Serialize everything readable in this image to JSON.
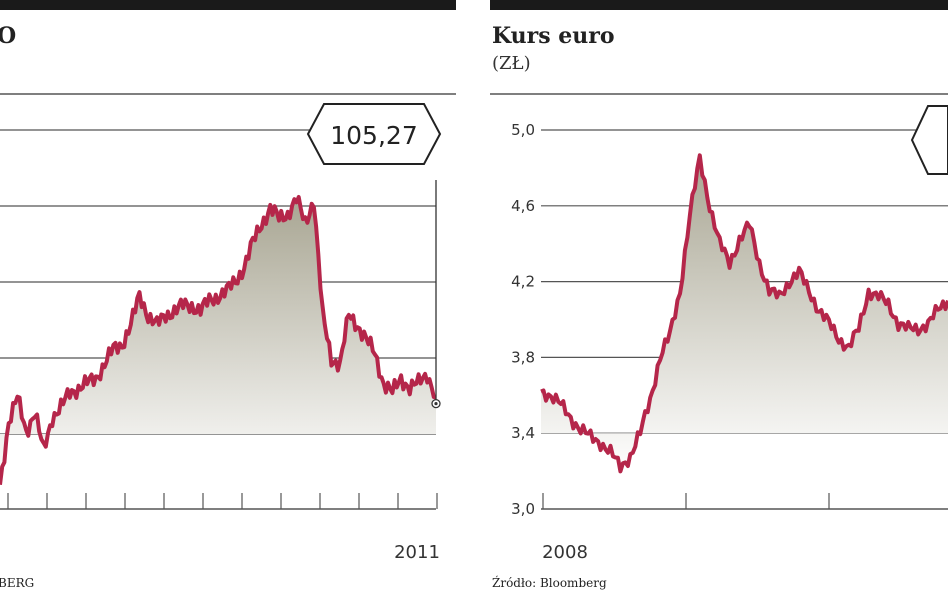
{
  "left_panel": {
    "title_visible": "O",
    "year_label": "2011",
    "source_visible": "BERG",
    "callout_value": "105,27",
    "colors": {
      "line": "#b5264a",
      "area_top": "#a8a592",
      "grid": "#555555"
    }
  },
  "right_panel": {
    "title": "Kurs euro",
    "unit": "(ZŁ)",
    "year_label": "2008",
    "source": "Źródło: Bloomberg",
    "colors": {
      "line": "#b5264a",
      "area_top": "#a8a592",
      "grid": "#555555"
    }
  },
  "chart_data": [
    {
      "type": "area",
      "title": "",
      "y_scale_labels_visible": false,
      "end_value": 105.27,
      "series": [
        {
          "values": [
            1.5,
            2.8,
            3.3,
            2.6,
            3.0,
            2.2,
            2.9,
            3.1,
            3.4,
            3.5,
            3.6,
            3.7,
            4.0,
            4.3,
            4.4,
            4.8,
            5.4,
            5.0,
            4.8,
            5.0,
            5.1,
            5.2,
            5.2,
            5.1,
            5.3,
            5.4,
            5.5,
            5.7,
            6.0,
            6.5,
            6.9,
            7.2,
            7.0,
            7.1,
            7.4,
            6.9,
            7.4,
            5.0,
            4.1,
            4.0,
            5.0,
            4.8,
            4.5,
            4.2,
            3.6,
            3.4,
            3.7,
            3.5,
            3.6,
            3.8,
            3.3
          ]
        }
      ]
    },
    {
      "type": "area",
      "title": "Kurs euro",
      "unit": "zł",
      "ylim": [
        3.0,
        5.0
      ],
      "y_ticks": [
        "3,0",
        "3,4",
        "3,8",
        "4,2",
        "4,6",
        "5,0"
      ],
      "x_label": "2008",
      "series": [
        {
          "values": [
            3.62,
            3.6,
            3.55,
            3.48,
            3.42,
            3.38,
            3.35,
            3.3,
            3.22,
            3.28,
            3.4,
            3.58,
            3.8,
            3.92,
            4.15,
            4.55,
            4.85,
            4.6,
            4.4,
            4.3,
            4.42,
            4.5,
            4.3,
            4.15,
            4.12,
            4.2,
            4.25,
            4.15,
            4.05,
            3.98,
            3.9,
            3.85,
            3.95,
            4.15,
            4.12,
            4.08,
            3.98,
            3.95,
            3.95,
            3.98,
            4.05,
            4.1
          ]
        }
      ]
    }
  ]
}
